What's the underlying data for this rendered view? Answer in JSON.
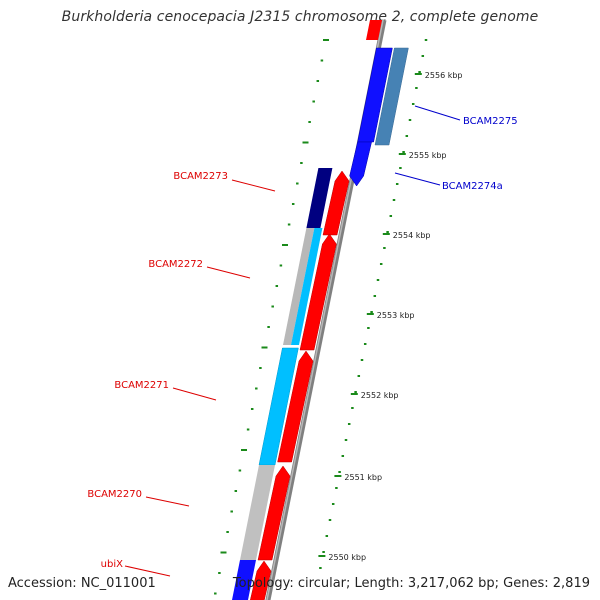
{
  "title": "Burkholderia cenocepacia J2315 chromosome 2, complete genome",
  "accession_text": "Accession: NC_011001",
  "topology_text": "Topology: circular; Length: 3,217,062 bp; Genes: 2,819",
  "scale": {
    "unit": "kbp",
    "labels": [
      "2556 kbp",
      "2555 kbp",
      "2554 kbp",
      "2553 kbp",
      "2552 kbp",
      "2551 kbp",
      "2550 kbp"
    ]
  },
  "genes": [
    {
      "name": "BCAM2275",
      "strand": "forward",
      "color": "#4682b4",
      "label_color": "#0000cc"
    },
    {
      "name": "BCAM2274a",
      "strand": "forward",
      "color": "#1010ff",
      "label_color": "#0000cc"
    },
    {
      "name": "BCAM2273",
      "strand": "reverse",
      "color": "#000080",
      "label_color": "#dd0000"
    },
    {
      "name": "BCAM2272",
      "strand": "reverse",
      "color": "#00bfff",
      "label_color": "#dd0000"
    },
    {
      "name": "BCAM2271",
      "strand": "reverse",
      "color": "#00bfff",
      "label_color": "#dd0000"
    },
    {
      "name": "BCAM2270",
      "strand": "reverse",
      "color": "#c0c0c0",
      "label_color": "#dd0000"
    },
    {
      "name": "ubiX",
      "strand": "reverse",
      "color": "#1010ff",
      "label_color": "#dd0000"
    }
  ],
  "colors": {
    "backbone": "#808080",
    "cds": "#ff0000",
    "tick_marks": "#1a8a1a"
  }
}
